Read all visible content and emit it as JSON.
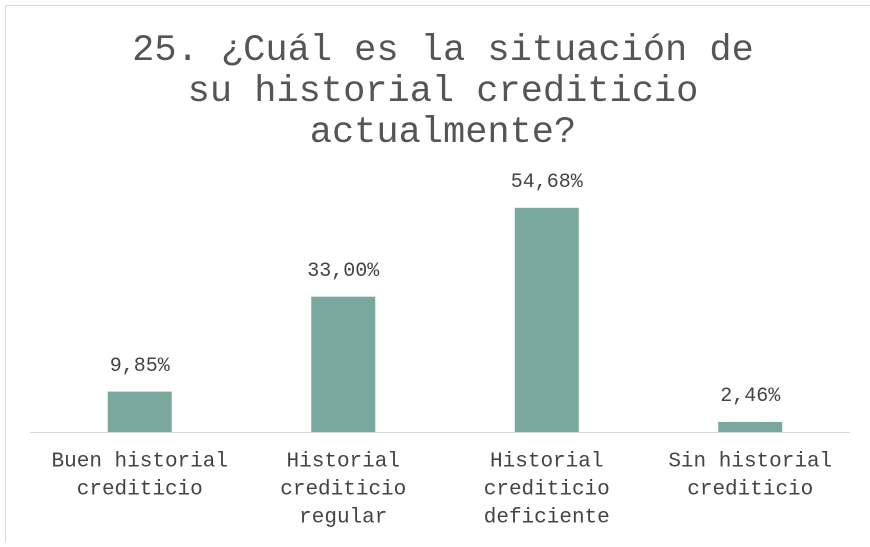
{
  "chart_data": {
    "type": "bar",
    "title": [
      "25. ¿Cuál es la situación de",
      "su historial crediticio",
      "actualmente?"
    ],
    "categories": [
      [
        "Buen historial",
        "crediticio"
      ],
      [
        "Historial",
        "crediticio",
        "regular"
      ],
      [
        "Historial",
        "crediticio",
        "deficiente"
      ],
      [
        "Sin historial",
        "crediticio"
      ]
    ],
    "values": [
      9.85,
      33.0,
      54.68,
      2.46
    ],
    "value_labels": [
      "9,85%",
      "33,00%",
      "54,68%",
      "2,46%"
    ],
    "color": "#7aa89c"
  }
}
